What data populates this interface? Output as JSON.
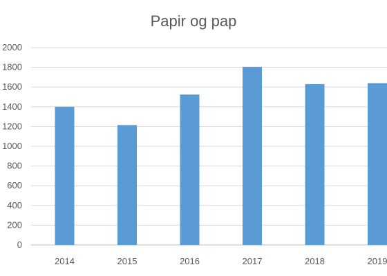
{
  "chart_data": {
    "type": "bar",
    "title": "Papir og pap",
    "xlabel": "",
    "ylabel": "",
    "categories": [
      "2014",
      "2015",
      "2016",
      "2017",
      "2018",
      "2019"
    ],
    "values": [
      1400,
      1215,
      1525,
      1805,
      1630,
      1640
    ],
    "ylim": [
      0,
      2000
    ],
    "yticks": [
      0,
      200,
      400,
      600,
      800,
      1000,
      1200,
      1400,
      1600,
      1800,
      2000
    ],
    "grid": true,
    "legend": "none",
    "bar_color": "#5b9bd5"
  }
}
